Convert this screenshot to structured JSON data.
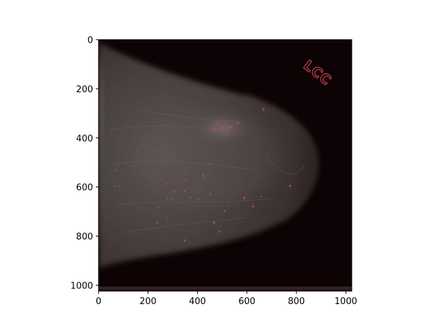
{
  "figure": {
    "image": {
      "description_icon": "mammogram-image",
      "overlay_marker_text": "LCC",
      "overlay_marker_color": "#b23a44",
      "background_color": "#0d0304",
      "breast_tissue_color": "#5a4f4e"
    },
    "axes": {
      "x_ticks": [
        "0",
        "200",
        "400",
        "600",
        "800",
        "1000"
      ],
      "y_ticks": [
        "0",
        "200",
        "400",
        "600",
        "800",
        "1000"
      ],
      "x_range": [
        0,
        1024
      ],
      "y_range": [
        0,
        1024
      ]
    },
    "spot_color": "#c2485a"
  }
}
